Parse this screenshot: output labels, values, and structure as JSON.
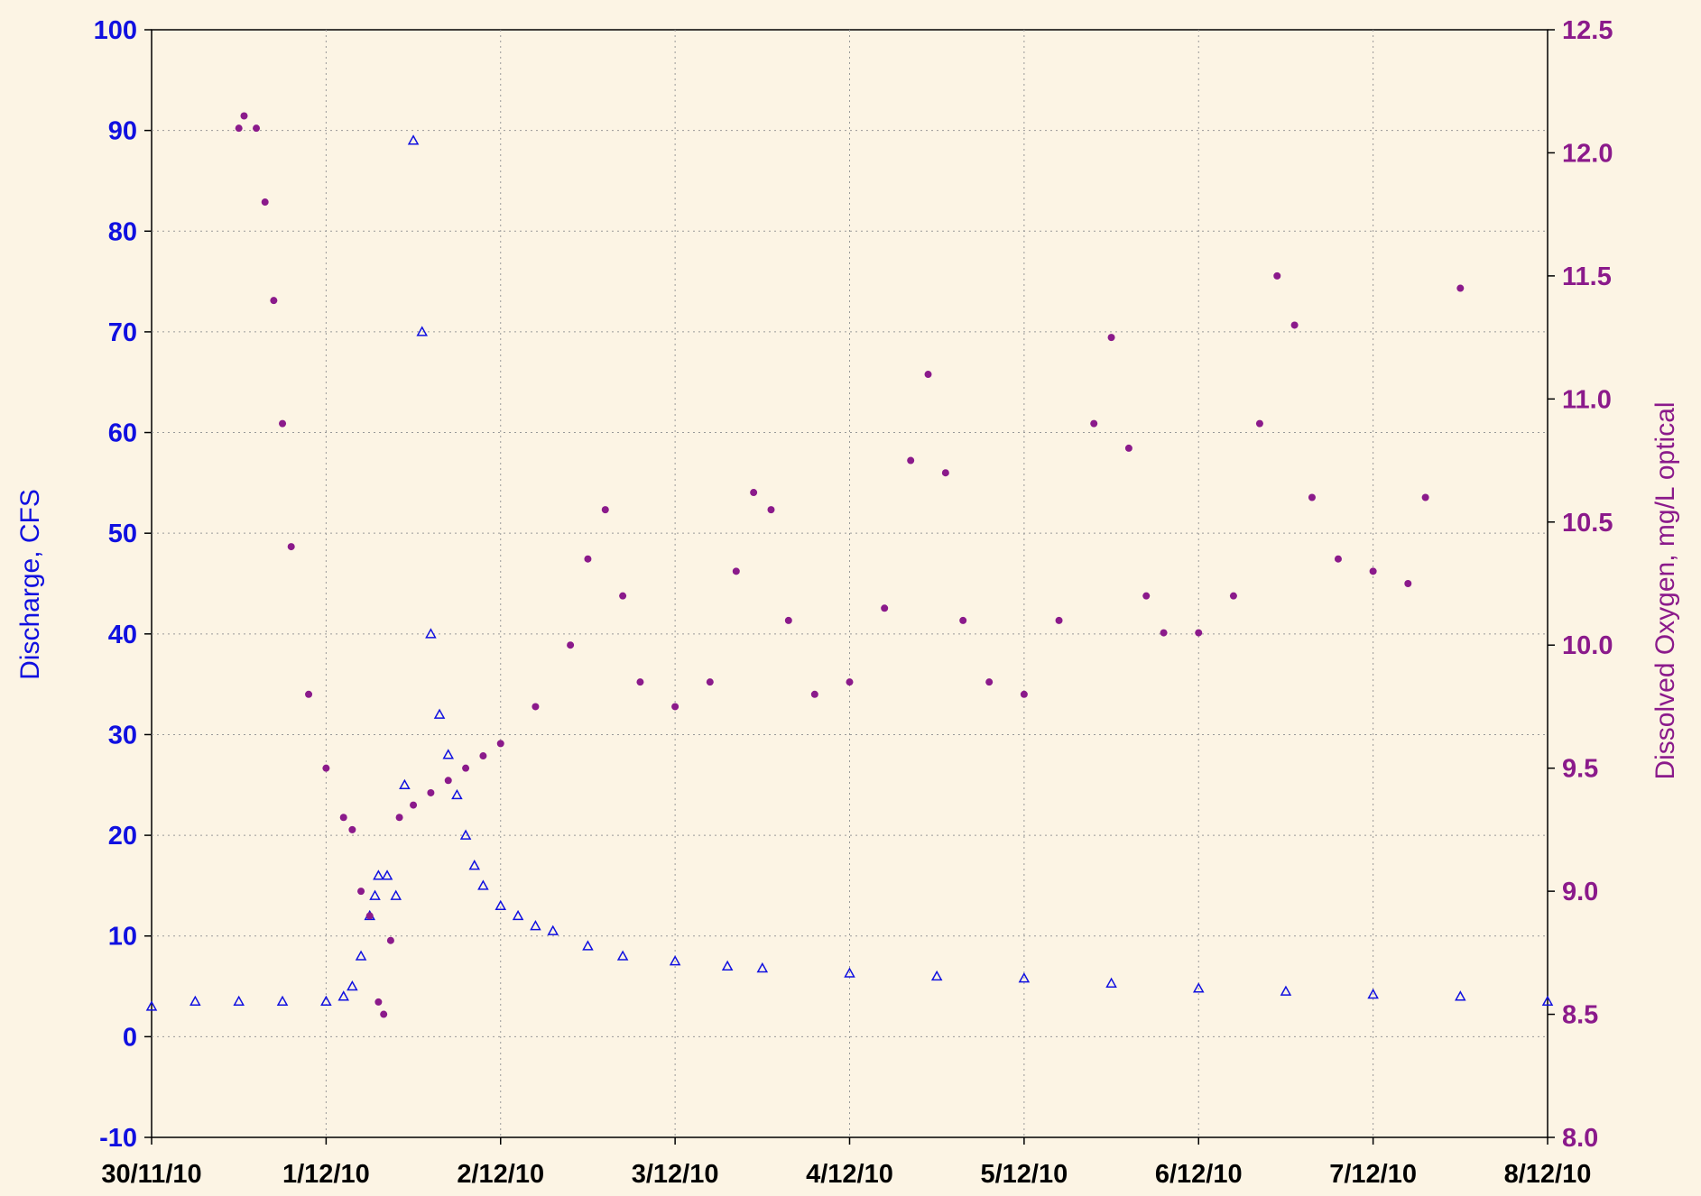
{
  "chart_data": {
    "type": "scatter",
    "title": "",
    "xlabel": "",
    "x_tick_labels": [
      "30/11/10",
      "1/12/10",
      "2/12/10",
      "3/12/10",
      "4/12/10",
      "5/12/10",
      "6/12/10",
      "7/12/10",
      "8/12/10"
    ],
    "x_range_days": [
      0,
      8
    ],
    "y_left": {
      "label": "Discharge, CFS",
      "ylim": [
        -10,
        100
      ],
      "ticks": [
        "-10",
        "0",
        "10",
        "20",
        "30",
        "40",
        "50",
        "60",
        "70",
        "80",
        "90",
        "100"
      ],
      "color": "#1010e0"
    },
    "y_right": {
      "label": "Dissolved Oxygen, mg/L optical",
      "ylim": [
        8.0,
        12.5
      ],
      "ticks": [
        "8.0",
        "8.5",
        "9.0",
        "9.5",
        "10.0",
        "10.5",
        "11.0",
        "11.5",
        "12.0",
        "12.5"
      ],
      "color": "#8b1a8b"
    },
    "grid": true,
    "series": [
      {
        "axis": "left",
        "marker": "triangle",
        "color": "#1010e0",
        "x": [
          0,
          0.25,
          0.5,
          0.75,
          1.0,
          1.1,
          1.15,
          1.2,
          1.25,
          1.28,
          1.3,
          1.35,
          1.4,
          1.45,
          1.5,
          1.55,
          1.6,
          1.65,
          1.7,
          1.75,
          1.8,
          1.85,
          1.9,
          2.0,
          2.1,
          2.2,
          2.3,
          2.5,
          2.7,
          3.0,
          3.3,
          3.5,
          4.0,
          4.5,
          5.0,
          5.5,
          6.0,
          6.5,
          7.0,
          7.5,
          8.0
        ],
        "y": [
          3,
          3.5,
          3.5,
          3.5,
          3.5,
          4,
          5,
          8,
          12,
          14,
          16,
          16,
          14,
          25,
          89,
          70,
          40,
          32,
          28,
          24,
          20,
          17,
          15,
          13,
          12,
          11,
          10.5,
          9,
          8,
          7.5,
          7,
          6.8,
          6.3,
          6,
          5.8,
          5.3,
          4.8,
          4.5,
          4.2,
          4,
          3.5
        ]
      },
      {
        "axis": "right",
        "marker": "dot",
        "color": "#8b1a8b",
        "x": [
          0.5,
          0.53,
          0.6,
          0.65,
          0.7,
          0.75,
          0.8,
          0.9,
          1.0,
          1.1,
          1.15,
          1.2,
          1.25,
          1.3,
          1.33,
          1.37,
          1.42,
          1.5,
          1.6,
          1.7,
          1.8,
          1.9,
          2.0,
          2.2,
          2.4,
          2.5,
          2.6,
          2.7,
          2.8,
          3.0,
          3.2,
          3.35,
          3.45,
          3.55,
          3.65,
          3.8,
          4.0,
          4.2,
          4.35,
          4.45,
          4.55,
          4.65,
          4.8,
          5.0,
          5.2,
          5.4,
          5.5,
          5.6,
          5.7,
          5.8,
          6.0,
          6.2,
          6.35,
          6.45,
          6.55,
          6.65,
          6.8,
          7.0,
          7.2,
          7.3,
          7.5
        ],
        "y": [
          12.1,
          12.15,
          12.1,
          11.8,
          11.4,
          10.9,
          10.4,
          9.8,
          9.5,
          9.3,
          9.25,
          9.0,
          8.9,
          8.55,
          8.5,
          8.8,
          9.3,
          9.35,
          9.4,
          9.45,
          9.5,
          9.55,
          9.6,
          9.75,
          10.0,
          10.35,
          10.55,
          10.2,
          9.85,
          9.75,
          9.85,
          10.3,
          10.62,
          10.55,
          10.1,
          9.8,
          9.85,
          10.15,
          10.75,
          11.1,
          10.7,
          10.1,
          9.85,
          9.8,
          10.1,
          10.9,
          11.25,
          10.8,
          10.2,
          10.05,
          10.05,
          10.2,
          10.9,
          11.5,
          11.3,
          10.6,
          10.35,
          10.3,
          10.25,
          10.6,
          11.45
        ]
      }
    ]
  }
}
